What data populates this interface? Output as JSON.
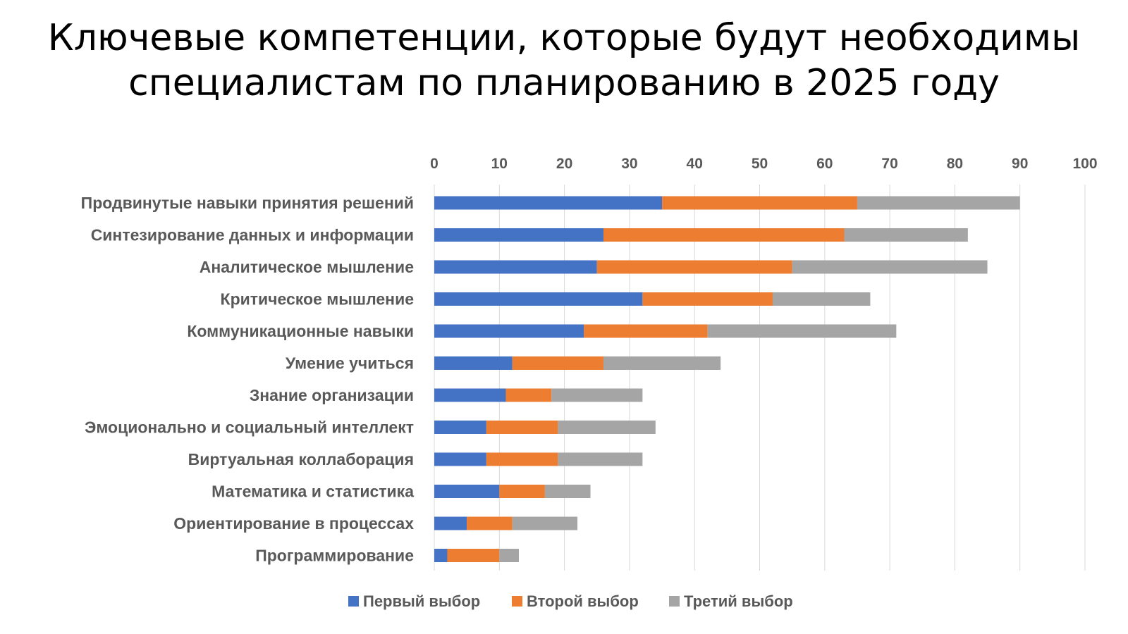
{
  "chart_data": {
    "type": "bar",
    "orientation": "horizontal",
    "stacked": true,
    "title_lines": [
      "Ключевые компетенции, которые будут необходимы",
      "специалистам по планированию в 2025 году"
    ],
    "categories": [
      "Продвинутые навыки принятия решений",
      "Синтезирование данных и информации",
      "Аналитическое мышление",
      "Критическое мышление",
      "Коммуникационные навыки",
      "Умение учиться",
      "Знание организации",
      "Эмоционально и социальный интеллект",
      "Виртуальная коллаборация",
      "Математика и статистика",
      "Ориентирование в процессах",
      "Программирование"
    ],
    "series": [
      {
        "name": "Первый выбор",
        "color": "#4472C4",
        "values": [
          35,
          26,
          25,
          32,
          23,
          12,
          11,
          8,
          8,
          10,
          5,
          2
        ]
      },
      {
        "name": "Второй выбор",
        "color": "#ED7D31",
        "values": [
          30,
          37,
          30,
          20,
          19,
          14,
          7,
          11,
          11,
          7,
          7,
          8
        ]
      },
      {
        "name": "Третий выбор",
        "color": "#A5A5A5",
        "values": [
          25,
          19,
          30,
          15,
          29,
          18,
          14,
          15,
          13,
          7,
          10,
          3
        ]
      }
    ],
    "xlim": [
      0,
      100
    ],
    "xticks": [
      0,
      10,
      20,
      30,
      40,
      50,
      60,
      70,
      80,
      90,
      100
    ],
    "x_axis_position": "top",
    "grid": true,
    "legend_position": "bottom"
  }
}
